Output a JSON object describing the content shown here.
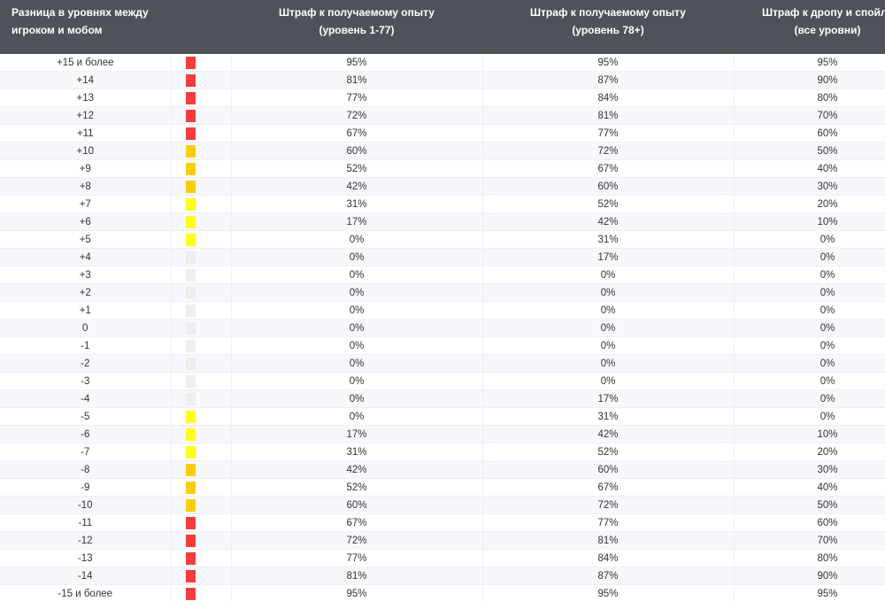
{
  "headers": {
    "diff": [
      "Разница в уровнях между",
      "игроком и мобом"
    ],
    "exp_low": [
      "Штраф к получаемому опыту",
      "(уровень 1-77)"
    ],
    "exp_high": [
      "Штраф к получаемому опыту",
      "(уровень 78+)"
    ],
    "drop": [
      "Штраф к дропу и спойлу",
      "(все уровни)"
    ]
  },
  "colors": {
    "red": "#f53d3d",
    "orange": "#ffcc11",
    "yellow": "#ffff1a",
    "gray": "#eeeeee",
    "header_bg": "#4f5259"
  },
  "rows": [
    {
      "diff": "+15 и более",
      "color": "red",
      "exp_low": "95%",
      "exp_high": "95%",
      "drop": "95%"
    },
    {
      "diff": "+14",
      "color": "red",
      "exp_low": "81%",
      "exp_high": "87%",
      "drop": "90%"
    },
    {
      "diff": "+13",
      "color": "red",
      "exp_low": "77%",
      "exp_high": "84%",
      "drop": "80%"
    },
    {
      "diff": "+12",
      "color": "red",
      "exp_low": "72%",
      "exp_high": "81%",
      "drop": "70%"
    },
    {
      "diff": "+11",
      "color": "red",
      "exp_low": "67%",
      "exp_high": "77%",
      "drop": "60%"
    },
    {
      "diff": "+10",
      "color": "orange",
      "exp_low": "60%",
      "exp_high": "72%",
      "drop": "50%"
    },
    {
      "diff": "+9",
      "color": "orange",
      "exp_low": "52%",
      "exp_high": "67%",
      "drop": "40%"
    },
    {
      "diff": "+8",
      "color": "orange",
      "exp_low": "42%",
      "exp_high": "60%",
      "drop": "30%"
    },
    {
      "diff": "+7",
      "color": "yellow",
      "exp_low": "31%",
      "exp_high": "52%",
      "drop": "20%"
    },
    {
      "diff": "+6",
      "color": "yellow",
      "exp_low": "17%",
      "exp_high": "42%",
      "drop": "10%"
    },
    {
      "diff": "+5",
      "color": "yellow",
      "exp_low": "0%",
      "exp_high": "31%",
      "drop": "0%"
    },
    {
      "diff": "+4",
      "color": "gray",
      "exp_low": "0%",
      "exp_high": "17%",
      "drop": "0%"
    },
    {
      "diff": "+3",
      "color": "gray",
      "exp_low": "0%",
      "exp_high": "0%",
      "drop": "0%"
    },
    {
      "diff": "+2",
      "color": "gray",
      "exp_low": "0%",
      "exp_high": "0%",
      "drop": "0%"
    },
    {
      "diff": "+1",
      "color": "gray",
      "exp_low": "0%",
      "exp_high": "0%",
      "drop": "0%"
    },
    {
      "diff": "0",
      "color": "gray",
      "exp_low": "0%",
      "exp_high": "0%",
      "drop": "0%"
    },
    {
      "diff": "-1",
      "color": "gray",
      "exp_low": "0%",
      "exp_high": "0%",
      "drop": "0%"
    },
    {
      "diff": "-2",
      "color": "gray",
      "exp_low": "0%",
      "exp_high": "0%",
      "drop": "0%"
    },
    {
      "diff": "-3",
      "color": "gray",
      "exp_low": "0%",
      "exp_high": "0%",
      "drop": "0%"
    },
    {
      "diff": "-4",
      "color": "gray",
      "exp_low": "0%",
      "exp_high": "17%",
      "drop": "0%"
    },
    {
      "diff": "-5",
      "color": "yellow",
      "exp_low": "0%",
      "exp_high": "31%",
      "drop": "0%"
    },
    {
      "diff": "-6",
      "color": "yellow",
      "exp_low": "17%",
      "exp_high": "42%",
      "drop": "10%"
    },
    {
      "diff": "-7",
      "color": "yellow",
      "exp_low": "31%",
      "exp_high": "52%",
      "drop": "20%"
    },
    {
      "diff": "-8",
      "color": "orange",
      "exp_low": "42%",
      "exp_high": "60%",
      "drop": "30%"
    },
    {
      "diff": "-9",
      "color": "orange",
      "exp_low": "52%",
      "exp_high": "67%",
      "drop": "40%"
    },
    {
      "diff": "-10",
      "color": "orange",
      "exp_low": "60%",
      "exp_high": "72%",
      "drop": "50%"
    },
    {
      "diff": "-11",
      "color": "red",
      "exp_low": "67%",
      "exp_high": "77%",
      "drop": "60%"
    },
    {
      "diff": "-12",
      "color": "red",
      "exp_low": "72%",
      "exp_high": "81%",
      "drop": "70%"
    },
    {
      "diff": "-13",
      "color": "red",
      "exp_low": "77%",
      "exp_high": "84%",
      "drop": "80%"
    },
    {
      "diff": "-14",
      "color": "red",
      "exp_low": "81%",
      "exp_high": "87%",
      "drop": "90%"
    },
    {
      "diff": "-15 и более",
      "color": "red",
      "exp_low": "95%",
      "exp_high": "95%",
      "drop": "95%"
    }
  ]
}
